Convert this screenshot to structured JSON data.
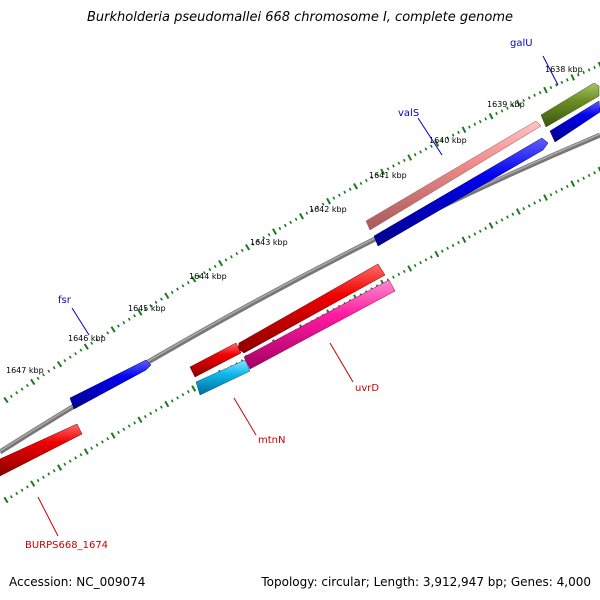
{
  "title": "Burkholderia pseudomallei 668 chromosome I, complete genome",
  "footer": {
    "accession": "Accession: NC_009074",
    "stats": "Topology: circular; Length: 3,912,947 bp; Genes: 4,000"
  },
  "scale": {
    "ticks": [
      {
        "label": "1638 kbp"
      },
      {
        "label": "1639 kbp"
      },
      {
        "label": "1640 kbp"
      },
      {
        "label": "1641 kbp"
      },
      {
        "label": "1642 kbp"
      },
      {
        "label": "1643 kbp"
      },
      {
        "label": "1644 kbp"
      },
      {
        "label": "1645 kbp"
      },
      {
        "label": "1646 kbp"
      },
      {
        "label": "1647 kbp"
      }
    ]
  },
  "genes": [
    {
      "name": "galU",
      "color": "#0000cc"
    },
    {
      "name": "valS",
      "color": "#0000cc"
    },
    {
      "name": "fsr",
      "color": "#0000cc"
    },
    {
      "name": "uvrD",
      "color": "#cc0000"
    },
    {
      "name": "mtnN",
      "color": "#cc0000"
    },
    {
      "name": "BURPS668_1674",
      "color": "#cc0000"
    }
  ],
  "colors": {
    "backbone": "#7f7f7f",
    "tick_marks": "#1a7a1a",
    "gene_blue": "#0000e6",
    "gene_red": "#f20000",
    "gene_pink": "#ee8888",
    "gene_olive": "#6b8e23",
    "gene_magenta": "#ff1493",
    "gene_cyan": "#00bfff",
    "label_blue": "#0000cc",
    "label_red": "#cc0000"
  }
}
